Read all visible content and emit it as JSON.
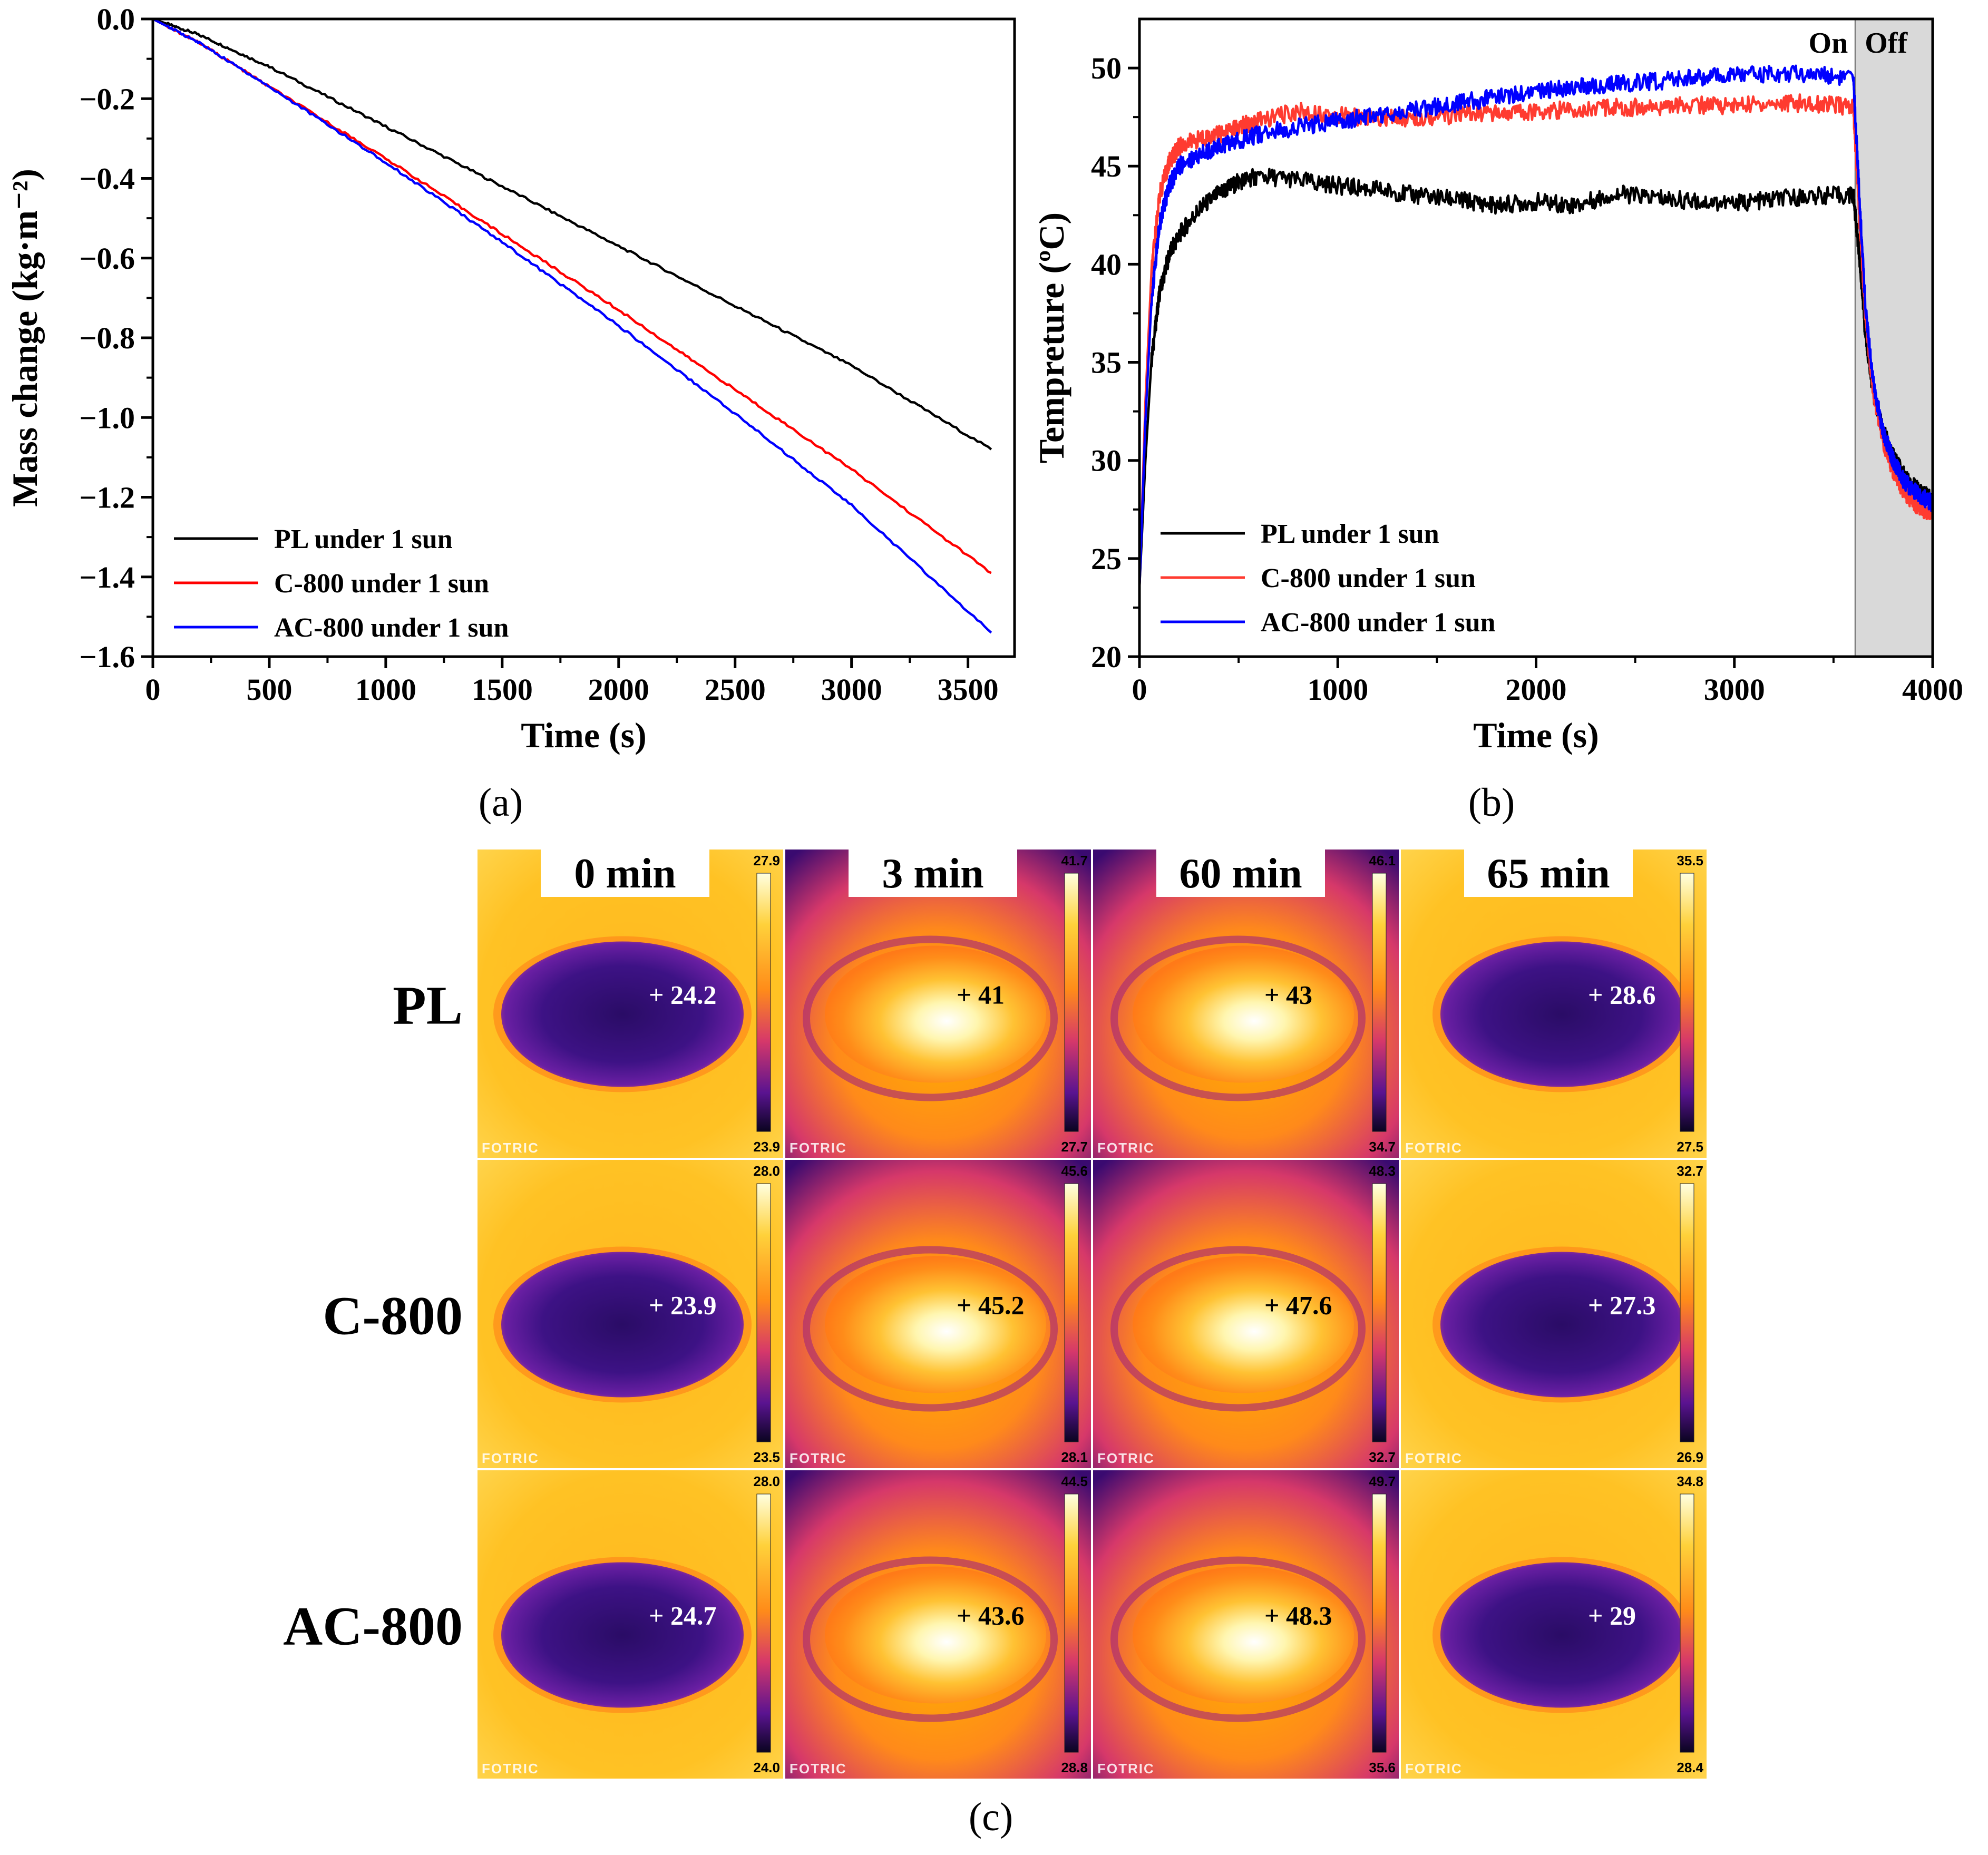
{
  "panel_labels": {
    "a": "(a)",
    "b": "(b)",
    "c": "(c)"
  },
  "chart_data": [
    {
      "id": "a",
      "type": "line",
      "title": "",
      "xlabel": "Time (s)",
      "ylabel": "Mass change (kg·m⁻²)",
      "xlim": [
        0,
        3700
      ],
      "ylim": [
        -1.6,
        0.0
      ],
      "xticks": [
        0,
        500,
        1000,
        1500,
        2000,
        2500,
        3000,
        3500
      ],
      "xtick_labels": [
        "0",
        "500",
        "1000",
        "1500",
        "2000",
        "2500",
        "3000",
        "3500"
      ],
      "yticks": [
        0.0,
        -0.2,
        -0.4,
        -0.6,
        -0.8,
        -1.0,
        -1.2,
        -1.4,
        -1.6
      ],
      "ytick_labels": [
        "0.0",
        "−0.2",
        "−0.4",
        "−0.6",
        "−0.8",
        "−1.0",
        "−1.2",
        "−1.4",
        "−1.6"
      ],
      "legend_position": "bottom-left",
      "series": [
        {
          "name": "PL under 1 sun",
          "color": "#000000",
          "x": [
            0,
            200,
            500,
            1000,
            1500,
            2000,
            2500,
            3000,
            3600
          ],
          "y": [
            0.0,
            -0.04,
            -0.12,
            -0.27,
            -0.42,
            -0.57,
            -0.72,
            -0.87,
            -1.08
          ]
        },
        {
          "name": "C-800 under 1 sun",
          "color": "#ff0000",
          "x": [
            0,
            200,
            500,
            1000,
            1500,
            2000,
            2500,
            3000,
            3600
          ],
          "y": [
            0.0,
            -0.06,
            -0.17,
            -0.35,
            -0.54,
            -0.73,
            -0.93,
            -1.13,
            -1.39
          ]
        },
        {
          "name": "AC-800 under 1 sun",
          "color": "#0000ff",
          "x": [
            0,
            200,
            500,
            1000,
            1500,
            2000,
            2500,
            3000,
            3600
          ],
          "y": [
            0.0,
            -0.06,
            -0.17,
            -0.36,
            -0.56,
            -0.77,
            -0.99,
            -1.22,
            -1.54
          ]
        }
      ]
    },
    {
      "id": "b",
      "type": "line",
      "title": "",
      "xlabel": "Time (s)",
      "ylabel": "Tempreture (ºC)",
      "xlim": [
        0,
        4000
      ],
      "ylim": [
        20,
        52.5
      ],
      "xticks": [
        0,
        1000,
        2000,
        3000,
        4000
      ],
      "xtick_labels": [
        "0",
        "1000",
        "2000",
        "3000",
        "4000"
      ],
      "yticks": [
        20,
        25,
        30,
        35,
        40,
        45,
        50
      ],
      "ytick_labels": [
        "20",
        "25",
        "30",
        "35",
        "40",
        "45",
        "50"
      ],
      "shaded_region": {
        "x_start": 3610,
        "x_end": 4000,
        "color": "#d9d9d9"
      },
      "annotations": [
        "On",
        "Off"
      ],
      "legend_position": "bottom-left",
      "series": [
        {
          "name": "PL under 1 sun",
          "color": "#000000",
          "x": [
            0,
            30,
            60,
            100,
            150,
            200,
            300,
            400,
            500,
            600,
            800,
            1000,
            1200,
            1400,
            1600,
            1800,
            2000,
            2200,
            2400,
            2600,
            2800,
            3000,
            3200,
            3400,
            3600,
            3630,
            3660,
            3700,
            3750,
            3800,
            3850,
            3900,
            3950,
            4000
          ],
          "y": [
            23.5,
            30,
            35,
            38.5,
            40.5,
            41.5,
            42.8,
            43.6,
            44.2,
            44.5,
            44.3,
            44.0,
            43.8,
            43.5,
            43.3,
            43.0,
            43.2,
            43.0,
            43.6,
            43.4,
            43.2,
            43.1,
            43.3,
            43.5,
            43.5,
            40.5,
            36.5,
            33.5,
            31.5,
            30.2,
            29.3,
            28.7,
            28.3,
            28.0
          ]
        },
        {
          "name": "C-800 under 1 sun",
          "color": "#ff3b30",
          "x": [
            0,
            30,
            60,
            100,
            150,
            200,
            300,
            400,
            500,
            600,
            800,
            1000,
            1200,
            1400,
            1600,
            1800,
            2000,
            2200,
            2400,
            2600,
            2800,
            3000,
            3200,
            3400,
            3600,
            3630,
            3660,
            3700,
            3750,
            3800,
            3850,
            3900,
            3950,
            4000
          ],
          "y": [
            23.5,
            33,
            39.5,
            43.5,
            45.2,
            46.0,
            46.4,
            46.6,
            47.0,
            47.3,
            47.8,
            47.6,
            47.4,
            47.5,
            47.6,
            47.7,
            47.8,
            47.9,
            48.0,
            48.0,
            48.1,
            48.1,
            48.2,
            48.2,
            48.0,
            42.5,
            37.5,
            33.5,
            31.0,
            29.5,
            28.5,
            27.9,
            27.5,
            27.3
          ]
        },
        {
          "name": "AC-800 under 1 sun",
          "color": "#0000ff",
          "x": [
            0,
            30,
            60,
            100,
            150,
            200,
            300,
            400,
            500,
            600,
            800,
            1000,
            1200,
            1400,
            1600,
            1800,
            2000,
            2200,
            2400,
            2600,
            2800,
            3000,
            3200,
            3400,
            3600,
            3630,
            3660,
            3700,
            3750,
            3800,
            3850,
            3900,
            3950,
            4000
          ],
          "y": [
            23.5,
            32,
            38.0,
            42.0,
            44.0,
            45.0,
            45.6,
            46.0,
            46.3,
            46.6,
            47.0,
            47.3,
            47.6,
            47.9,
            48.2,
            48.5,
            48.8,
            49.0,
            49.2,
            49.3,
            49.5,
            49.6,
            49.7,
            49.7,
            49.5,
            43.5,
            38.0,
            34.0,
            31.5,
            30.0,
            29.0,
            28.5,
            28.1,
            27.8
          ]
        }
      ]
    },
    {
      "id": "c",
      "type": "heatmap",
      "brand_label": "FOTRIC",
      "column_titles": [
        "0 min",
        "3 min",
        "60 min",
        "65 min"
      ],
      "row_labels": [
        "PL",
        "C-800",
        "AC-800"
      ],
      "cells": [
        [
          {
            "spot": "24.2",
            "max": "27.9",
            "min": "23.9",
            "state": "cool"
          },
          {
            "spot": "41",
            "max": "41.7",
            "min": "27.7",
            "state": "hot"
          },
          {
            "spot": "43",
            "max": "46.1",
            "min": "34.7",
            "state": "hot"
          },
          {
            "spot": "28.6",
            "max": "35.5",
            "min": "27.5",
            "state": "cool"
          }
        ],
        [
          {
            "spot": "23.9",
            "max": "28.0",
            "min": "23.5",
            "state": "cool"
          },
          {
            "spot": "45.2",
            "max": "45.6",
            "min": "28.1",
            "state": "hot"
          },
          {
            "spot": "47.6",
            "max": "48.3",
            "min": "32.7",
            "state": "hot"
          },
          {
            "spot": "27.3",
            "max": "32.7",
            "min": "26.9",
            "state": "cool"
          }
        ],
        [
          {
            "spot": "24.7",
            "max": "28.0",
            "min": "24.0",
            "state": "cool"
          },
          {
            "spot": "43.6",
            "max": "44.5",
            "min": "28.8",
            "state": "hot"
          },
          {
            "spot": "48.3",
            "max": "49.7",
            "min": "35.6",
            "state": "hot"
          },
          {
            "spot": "29",
            "max": "34.8",
            "min": "28.4",
            "state": "cool"
          }
        ]
      ]
    }
  ]
}
